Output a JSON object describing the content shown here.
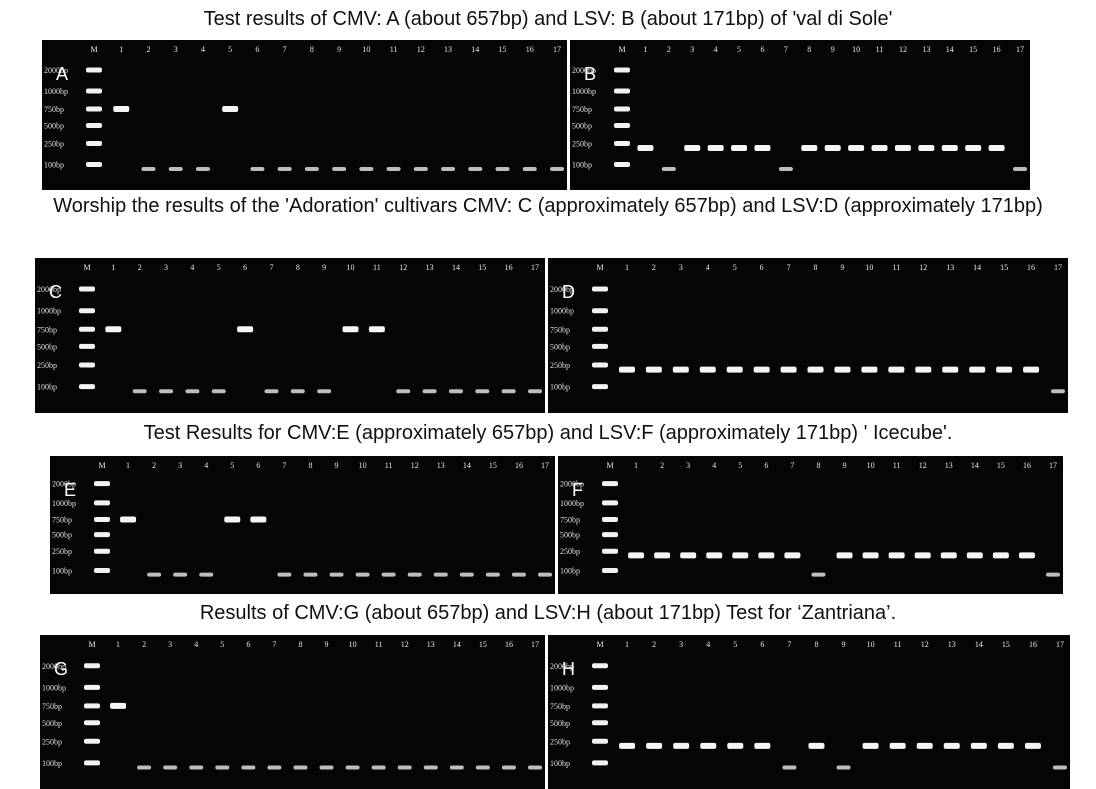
{
  "captions": {
    "ab": "Test results of CMV: A (about 657bp) and LSV: B (about 171bp) of 'val di Sole'",
    "cd": "Worship the results of the 'Adoration' cultivars CMV: C (approximately 657bp) and LSV:D (approximately 171bp)",
    "ef": "Test Results for CMV:E (approximately 657bp) and LSV:F (approximately 171bp) ' Icecube'.",
    "gh": "Results of CMV:G (about 657bp) and LSV:H (about 171bp) Test for ‘Zantriana’."
  },
  "ladder": [
    "2000bp",
    "1000bp",
    "750bp",
    "500bp",
    "250bp",
    "100bp"
  ],
  "lane_labels": [
    "M",
    "1",
    "2",
    "3",
    "4",
    "5",
    "6",
    "7",
    "8",
    "9",
    "10",
    "11",
    "12",
    "13",
    "14",
    "15",
    "16",
    "17"
  ],
  "gels": [
    {
      "letter": "A",
      "positive_lanes": [
        1,
        5
      ],
      "product": "CMV",
      "size": "657bp"
    },
    {
      "letter": "B",
      "positive_lanes": [
        1,
        3,
        4,
        5,
        6,
        8,
        9,
        10,
        11,
        12,
        13,
        14,
        15,
        16
      ],
      "product": "LSV",
      "size": "171bp"
    },
    {
      "letter": "C",
      "positive_lanes": [
        1,
        6,
        10,
        11
      ],
      "product": "CMV",
      "size": "657bp"
    },
    {
      "letter": "D",
      "positive_lanes": [
        1,
        2,
        3,
        4,
        5,
        6,
        7,
        8,
        9,
        10,
        11,
        12,
        13,
        14,
        15,
        16
      ],
      "product": "LSV",
      "size": "171bp"
    },
    {
      "letter": "E",
      "positive_lanes": [
        1,
        5,
        6
      ],
      "product": "CMV",
      "size": "657bp"
    },
    {
      "letter": "F",
      "positive_lanes": [
        1,
        2,
        3,
        4,
        5,
        6,
        7,
        9,
        10,
        11,
        12,
        13,
        14,
        15,
        16
      ],
      "product": "LSV",
      "size": "171bp"
    },
    {
      "letter": "G",
      "positive_lanes": [
        1
      ],
      "product": "CMV",
      "size": "657bp"
    },
    {
      "letter": "H",
      "positive_lanes": [
        1,
        2,
        3,
        4,
        5,
        6,
        8,
        10,
        11,
        12,
        13,
        14,
        15,
        16
      ],
      "product": "LSV",
      "size": "171bp"
    }
  ]
}
